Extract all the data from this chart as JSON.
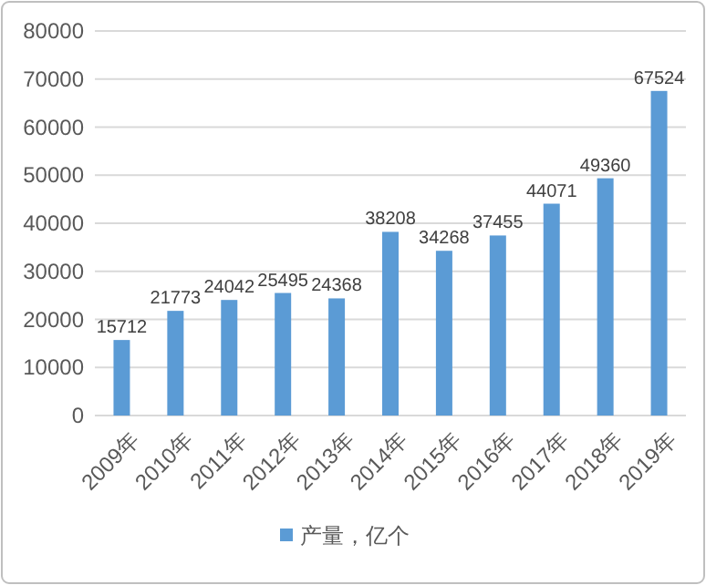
{
  "chart_data": {
    "type": "bar",
    "categories": [
      "2009年",
      "2010年",
      "2011年",
      "2012年",
      "2013年",
      "2014年",
      "2015年",
      "2016年",
      "2017年",
      "2018年",
      "2019年"
    ],
    "series": [
      {
        "name": "产量，亿个",
        "color": "#5b9bd5",
        "values": [
          15712,
          21773,
          24042,
          25495,
          24368,
          38208,
          34268,
          37455,
          44071,
          49360,
          67524
        ]
      }
    ],
    "ylim": [
      0,
      80000
    ],
    "yticks": [
      0,
      10000,
      20000,
      30000,
      40000,
      50000,
      60000,
      70000,
      80000
    ],
    "grid": "y",
    "legend": "bottom",
    "data_labels": true
  }
}
